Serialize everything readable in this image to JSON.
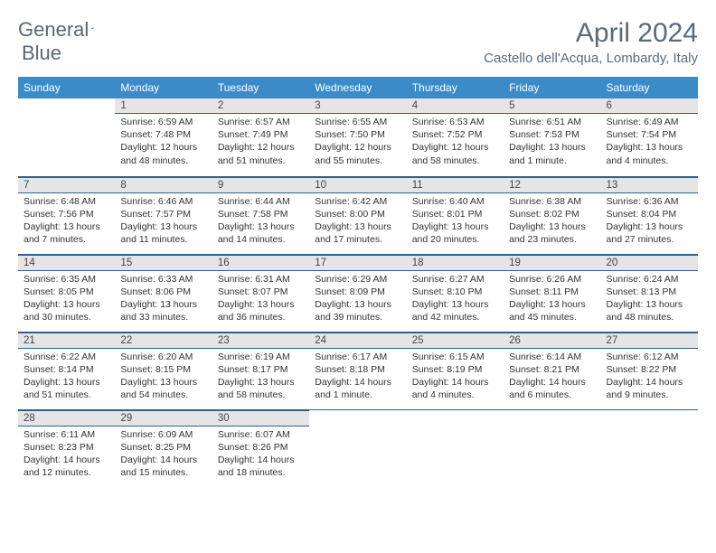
{
  "brand": {
    "word1": "General",
    "word2": "Blue",
    "text_color": "#5a6770",
    "accent_color": "#2d7fc1"
  },
  "header": {
    "month_title": "April 2024",
    "location": "Castello dell'Acqua, Lombardy, Italy"
  },
  "colors": {
    "header_bg": "#3b8bc9",
    "header_text": "#ffffff",
    "daynum_bg": "#e5e5e5",
    "daynum_text": "#454545",
    "border": "#2d5f8f",
    "body_text": "#333333"
  },
  "weekdays": [
    "Sunday",
    "Monday",
    "Tuesday",
    "Wednesday",
    "Thursday",
    "Friday",
    "Saturday"
  ],
  "weeks": [
    [
      {
        "n": "",
        "sun": "",
        "set": "",
        "day": ""
      },
      {
        "n": "1",
        "sun": "Sunrise: 6:59 AM",
        "set": "Sunset: 7:48 PM",
        "day": "Daylight: 12 hours and 48 minutes."
      },
      {
        "n": "2",
        "sun": "Sunrise: 6:57 AM",
        "set": "Sunset: 7:49 PM",
        "day": "Daylight: 12 hours and 51 minutes."
      },
      {
        "n": "3",
        "sun": "Sunrise: 6:55 AM",
        "set": "Sunset: 7:50 PM",
        "day": "Daylight: 12 hours and 55 minutes."
      },
      {
        "n": "4",
        "sun": "Sunrise: 6:53 AM",
        "set": "Sunset: 7:52 PM",
        "day": "Daylight: 12 hours and 58 minutes."
      },
      {
        "n": "5",
        "sun": "Sunrise: 6:51 AM",
        "set": "Sunset: 7:53 PM",
        "day": "Daylight: 13 hours and 1 minute."
      },
      {
        "n": "6",
        "sun": "Sunrise: 6:49 AM",
        "set": "Sunset: 7:54 PM",
        "day": "Daylight: 13 hours and 4 minutes."
      }
    ],
    [
      {
        "n": "7",
        "sun": "Sunrise: 6:48 AM",
        "set": "Sunset: 7:56 PM",
        "day": "Daylight: 13 hours and 7 minutes."
      },
      {
        "n": "8",
        "sun": "Sunrise: 6:46 AM",
        "set": "Sunset: 7:57 PM",
        "day": "Daylight: 13 hours and 11 minutes."
      },
      {
        "n": "9",
        "sun": "Sunrise: 6:44 AM",
        "set": "Sunset: 7:58 PM",
        "day": "Daylight: 13 hours and 14 minutes."
      },
      {
        "n": "10",
        "sun": "Sunrise: 6:42 AM",
        "set": "Sunset: 8:00 PM",
        "day": "Daylight: 13 hours and 17 minutes."
      },
      {
        "n": "11",
        "sun": "Sunrise: 6:40 AM",
        "set": "Sunset: 8:01 PM",
        "day": "Daylight: 13 hours and 20 minutes."
      },
      {
        "n": "12",
        "sun": "Sunrise: 6:38 AM",
        "set": "Sunset: 8:02 PM",
        "day": "Daylight: 13 hours and 23 minutes."
      },
      {
        "n": "13",
        "sun": "Sunrise: 6:36 AM",
        "set": "Sunset: 8:04 PM",
        "day": "Daylight: 13 hours and 27 minutes."
      }
    ],
    [
      {
        "n": "14",
        "sun": "Sunrise: 6:35 AM",
        "set": "Sunset: 8:05 PM",
        "day": "Daylight: 13 hours and 30 minutes."
      },
      {
        "n": "15",
        "sun": "Sunrise: 6:33 AM",
        "set": "Sunset: 8:06 PM",
        "day": "Daylight: 13 hours and 33 minutes."
      },
      {
        "n": "16",
        "sun": "Sunrise: 6:31 AM",
        "set": "Sunset: 8:07 PM",
        "day": "Daylight: 13 hours and 36 minutes."
      },
      {
        "n": "17",
        "sun": "Sunrise: 6:29 AM",
        "set": "Sunset: 8:09 PM",
        "day": "Daylight: 13 hours and 39 minutes."
      },
      {
        "n": "18",
        "sun": "Sunrise: 6:27 AM",
        "set": "Sunset: 8:10 PM",
        "day": "Daylight: 13 hours and 42 minutes."
      },
      {
        "n": "19",
        "sun": "Sunrise: 6:26 AM",
        "set": "Sunset: 8:11 PM",
        "day": "Daylight: 13 hours and 45 minutes."
      },
      {
        "n": "20",
        "sun": "Sunrise: 6:24 AM",
        "set": "Sunset: 8:13 PM",
        "day": "Daylight: 13 hours and 48 minutes."
      }
    ],
    [
      {
        "n": "21",
        "sun": "Sunrise: 6:22 AM",
        "set": "Sunset: 8:14 PM",
        "day": "Daylight: 13 hours and 51 minutes."
      },
      {
        "n": "22",
        "sun": "Sunrise: 6:20 AM",
        "set": "Sunset: 8:15 PM",
        "day": "Daylight: 13 hours and 54 minutes."
      },
      {
        "n": "23",
        "sun": "Sunrise: 6:19 AM",
        "set": "Sunset: 8:17 PM",
        "day": "Daylight: 13 hours and 58 minutes."
      },
      {
        "n": "24",
        "sun": "Sunrise: 6:17 AM",
        "set": "Sunset: 8:18 PM",
        "day": "Daylight: 14 hours and 1 minute."
      },
      {
        "n": "25",
        "sun": "Sunrise: 6:15 AM",
        "set": "Sunset: 8:19 PM",
        "day": "Daylight: 14 hours and 4 minutes."
      },
      {
        "n": "26",
        "sun": "Sunrise: 6:14 AM",
        "set": "Sunset: 8:21 PM",
        "day": "Daylight: 14 hours and 6 minutes."
      },
      {
        "n": "27",
        "sun": "Sunrise: 6:12 AM",
        "set": "Sunset: 8:22 PM",
        "day": "Daylight: 14 hours and 9 minutes."
      }
    ],
    [
      {
        "n": "28",
        "sun": "Sunrise: 6:11 AM",
        "set": "Sunset: 8:23 PM",
        "day": "Daylight: 14 hours and 12 minutes."
      },
      {
        "n": "29",
        "sun": "Sunrise: 6:09 AM",
        "set": "Sunset: 8:25 PM",
        "day": "Daylight: 14 hours and 15 minutes."
      },
      {
        "n": "30",
        "sun": "Sunrise: 6:07 AM",
        "set": "Sunset: 8:26 PM",
        "day": "Daylight: 14 hours and 18 minutes."
      },
      {
        "n": "",
        "sun": "",
        "set": "",
        "day": ""
      },
      {
        "n": "",
        "sun": "",
        "set": "",
        "day": ""
      },
      {
        "n": "",
        "sun": "",
        "set": "",
        "day": ""
      },
      {
        "n": "",
        "sun": "",
        "set": "",
        "day": ""
      }
    ]
  ]
}
